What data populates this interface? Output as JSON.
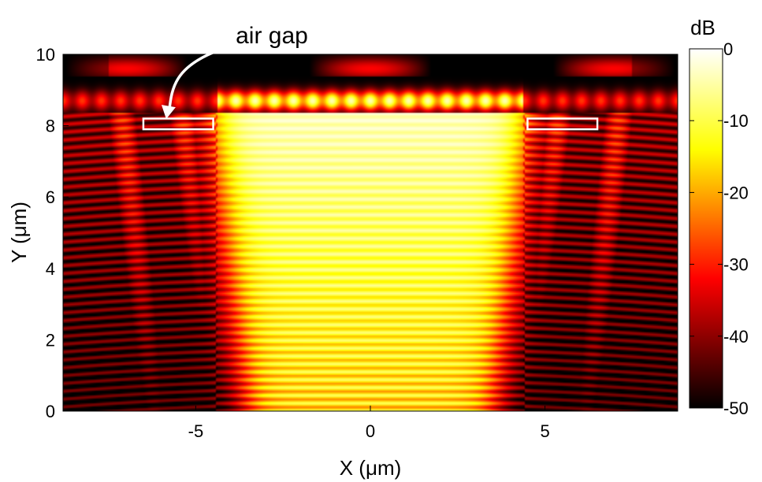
{
  "chart_data": {
    "type": "heatmap",
    "title": "",
    "xlabel": "X (μm)",
    "ylabel": "Y (μm)",
    "xlim": [
      -8.8,
      8.8
    ],
    "ylim": [
      0,
      10
    ],
    "xticks": [
      -5,
      0,
      5
    ],
    "yticks": [
      0,
      2,
      4,
      6,
      8,
      10
    ],
    "colorbar": {
      "label": "dB",
      "range": [
        -50,
        0
      ],
      "ticks": [
        0,
        -10,
        -20,
        -30,
        -40,
        -50
      ],
      "colormap": "hot"
    },
    "annotations": [
      {
        "text": "air gap",
        "points_to": [
          -5.8,
          8.1
        ]
      }
    ],
    "highlight_boxes": [
      {
        "name": "left-air-gap",
        "x": [
          -6.5,
          -4.5
        ],
        "y": [
          7.9,
          8.2
        ]
      },
      {
        "name": "right-air-gap",
        "x": [
          4.5,
          6.5
        ],
        "y": [
          7.9,
          8.2
        ]
      }
    ],
    "field": {
      "central_beam_x": [
        -4.4,
        4.4
      ],
      "max_level_db": 0,
      "background_level_db": -50,
      "surface_row_y": 8.7
    }
  }
}
